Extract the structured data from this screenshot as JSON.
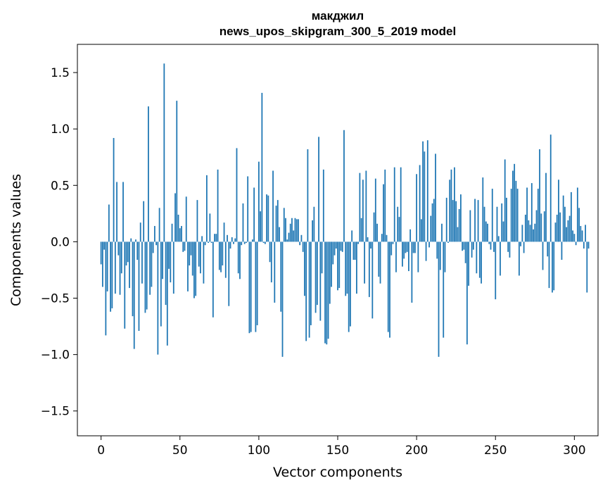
{
  "chart_data": {
    "type": "bar",
    "title_line1": "макджил",
    "title_line2": "news_upos_skipgram_300_5_2019 model",
    "xlabel": "Vector components",
    "ylabel": "Components values",
    "xlim": [
      -15,
      315
    ],
    "ylim": [
      -1.72,
      1.75
    ],
    "xticks": [
      0,
      50,
      100,
      150,
      200,
      250,
      300
    ],
    "yticks": [
      -1.5,
      -1.0,
      -0.5,
      0.0,
      0.5,
      1.0,
      1.5
    ],
    "ytick_labels": [
      "−1.5",
      "−1.0",
      "−0.5",
      "0.0",
      "0.5",
      "1.0",
      "1.5"
    ],
    "bar_color": "#1f77b4",
    "values": [
      -0.2,
      -0.4,
      -0.07,
      -0.83,
      -0.44,
      0.33,
      -0.62,
      -0.59,
      0.92,
      -0.46,
      0.53,
      -0.12,
      -0.47,
      -0.28,
      0.53,
      -0.77,
      -0.21,
      -0.18,
      -0.41,
      0.03,
      -0.66,
      -0.95,
      0.02,
      -0.16,
      -0.79,
      0.17,
      -0.37,
      0.36,
      -0.63,
      -0.6,
      1.2,
      -0.47,
      -0.4,
      -0.1,
      0.14,
      -0.03,
      -1.0,
      0.3,
      -0.75,
      -0.33,
      1.58,
      -0.56,
      -0.92,
      -0.24,
      -0.36,
      0.16,
      -0.46,
      0.43,
      1.25,
      0.24,
      0.12,
      0.14,
      -0.09,
      -0.08,
      0.4,
      -0.44,
      -0.21,
      -0.12,
      -0.3,
      -0.5,
      -0.48,
      0.37,
      -0.22,
      -0.28,
      0.05,
      -0.37,
      -0.03,
      0.59,
      -0.01,
      0.25,
      -0.01,
      -0.67,
      0.07,
      0.07,
      0.64,
      -0.25,
      -0.27,
      -0.21,
      0.17,
      -0.32,
      0.06,
      -0.57,
      -0.06,
      0.04,
      -0.02,
      0.03,
      0.83,
      -0.28,
      -0.33,
      -0.03,
      0.34,
      -0.02,
      -0.01,
      0.58,
      -0.81,
      -0.8,
      0.02,
      0.48,
      -0.8,
      -0.74,
      0.71,
      0.27,
      1.32,
      -0.01,
      -0.02,
      0.42,
      0.41,
      -0.18,
      -0.36,
      0.63,
      -0.54,
      0.32,
      0.37,
      0.13,
      -0.62,
      -1.02,
      0.3,
      0.21,
      0.02,
      0.08,
      0.16,
      0.21,
      0.1,
      0.21,
      0.2,
      0.2,
      -0.03,
      0.06,
      -0.09,
      -0.48,
      -0.88,
      0.82,
      -0.85,
      -0.74,
      0.19,
      0.31,
      -0.63,
      -0.56,
      0.93,
      -0.7,
      -0.28,
      0.64,
      -0.9,
      -0.91,
      -0.86,
      -0.55,
      -0.4,
      -0.2,
      -0.12,
      -0.06,
      -0.43,
      -0.41,
      -0.08,
      -0.09,
      0.99,
      -0.48,
      -0.46,
      -0.8,
      -0.75,
      0.1,
      -0.16,
      -0.16,
      -0.46,
      -0.02,
      0.61,
      0.21,
      0.55,
      -0.37,
      0.63,
      0.04,
      -0.49,
      -0.06,
      -0.68,
      0.26,
      0.56,
      0.16,
      -0.31,
      -0.37,
      0.07,
      0.51,
      0.64,
      0.06,
      -0.8,
      -0.85,
      -0.12,
      -0.02,
      0.66,
      -0.27,
      0.31,
      0.22,
      0.66,
      -0.22,
      -0.15,
      -0.1,
      -0.09,
      -0.26,
      0.11,
      -0.54,
      -0.1,
      -0.1,
      0.6,
      -0.27,
      0.68,
      0.2,
      0.89,
      0.8,
      -0.17,
      0.9,
      -0.05,
      0.23,
      0.34,
      0.38,
      0.78,
      -0.15,
      -1.02,
      -0.25,
      0.16,
      -0.85,
      -0.27,
      0.39,
      -0.01,
      0.55,
      0.64,
      0.37,
      0.66,
      0.36,
      0.13,
      0.29,
      0.42,
      -0.08,
      -0.07,
      -0.19,
      -0.91,
      -0.39,
      0.28,
      -0.14,
      -0.07,
      0.38,
      -0.28,
      0.37,
      -0.32,
      -0.37,
      0.57,
      0.31,
      0.18,
      0.16,
      -0.02,
      -0.07,
      0.47,
      -0.09,
      -0.51,
      0.31,
      0.05,
      -0.3,
      0.34,
      0.18,
      0.73,
      0.39,
      -0.09,
      -0.14,
      0.47,
      0.63,
      0.69,
      0.54,
      0.47,
      -0.3,
      -0.04,
      0.15,
      -0.1,
      0.24,
      0.48,
      0.19,
      0.15,
      0.52,
      0.11,
      0.16,
      0.28,
      0.47,
      0.82,
      0.25,
      -0.25,
      0.27,
      0.61,
      -0.13,
      -0.41,
      0.95,
      -0.45,
      -0.43,
      0.17,
      0.24,
      0.55,
      0.26,
      -0.16,
      0.41,
      0.31,
      0.13,
      0.19,
      0.23,
      0.44,
      0.1,
      0.07,
      -0.03,
      0.48,
      0.3,
      0.14,
      0.1,
      -0.06,
      0.15,
      -0.45,
      -0.06
    ]
  }
}
